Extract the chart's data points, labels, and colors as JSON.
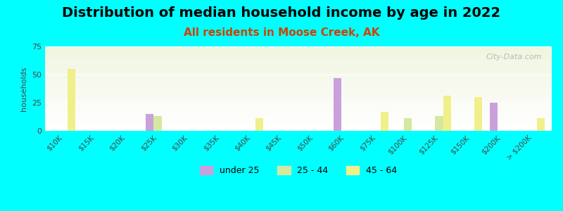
{
  "title": "Distribution of median household income by age in 2022",
  "subtitle": "All residents in Moose Creek, AK",
  "xlabel": "",
  "ylabel": "households",
  "background_color": "#00FFFF",
  "plot_bg_top": "#e8f5e0",
  "plot_bg_bottom": "#ffffff",
  "categories": [
    "$10K",
    "$15K",
    "$20K",
    "$25K",
    "$30K",
    "$35K",
    "$40K",
    "$45K",
    "$50K",
    "$60K",
    "$75K",
    "$100K",
    "$125K",
    "$150K",
    "$200K",
    "> $200K"
  ],
  "ylim": [
    0,
    75
  ],
  "yticks": [
    0,
    25,
    50,
    75
  ],
  "series": {
    "under 25": {
      "color": "#c9a0dc",
      "values": [
        0,
        0,
        0,
        15,
        0,
        0,
        0,
        0,
        0,
        47,
        0,
        0,
        0,
        0,
        25,
        0
      ]
    },
    "25 - 44": {
      "color": "#d4e8a0",
      "values": [
        0,
        0,
        0,
        13,
        0,
        0,
        0,
        0,
        0,
        0,
        0,
        11,
        13,
        0,
        0,
        0
      ]
    },
    "45 - 64": {
      "color": "#f0f08a",
      "values": [
        55,
        0,
        0,
        0,
        0,
        0,
        11,
        0,
        0,
        0,
        17,
        0,
        31,
        30,
        0,
        11
      ]
    }
  },
  "legend_labels": [
    "under 25",
    "25 - 44",
    "45 - 64"
  ],
  "legend_colors": [
    "#c9a0dc",
    "#d4e8a0",
    "#f0f08a"
  ],
  "watermark": "City-Data.com",
  "title_fontsize": 14,
  "subtitle_fontsize": 11,
  "bar_width": 0.25
}
